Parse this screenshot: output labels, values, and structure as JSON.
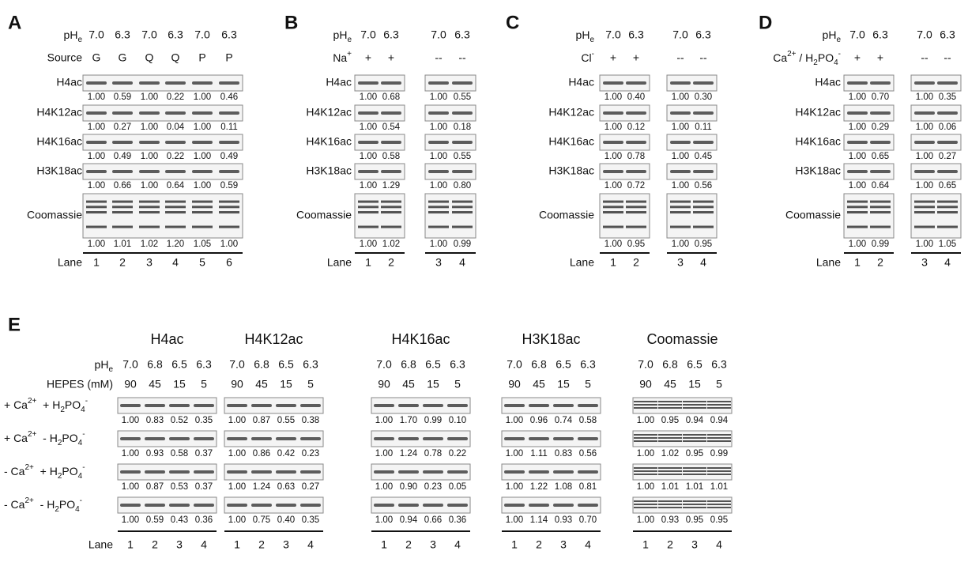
{
  "panels": [
    {
      "label": "A",
      "header_rows": [
        {
          "label": [
            {
              "t": "pH"
            },
            {
              "sub": "e"
            }
          ],
          "values": [
            "7.0",
            "6.3",
            "7.0",
            "6.3",
            "7.0",
            "6.3"
          ]
        },
        {
          "label": "Source",
          "values": [
            "G",
            "G",
            "Q",
            "Q",
            "P",
            "P"
          ]
        }
      ],
      "blots": [
        {
          "label": "H4ac",
          "quant": [
            "1.00",
            "0.59",
            "1.00",
            "0.22",
            "1.00",
            "0.46"
          ]
        },
        {
          "label": "H4K12ac",
          "quant": [
            "1.00",
            "0.27",
            "1.00",
            "0.04",
            "1.00",
            "0.11"
          ]
        },
        {
          "label": "H4K16ac",
          "quant": [
            "1.00",
            "0.49",
            "1.00",
            "0.22",
            "1.00",
            "0.49"
          ]
        },
        {
          "label": "H3K18ac",
          "quant": [
            "1.00",
            "0.66",
            "1.00",
            "0.64",
            "1.00",
            "0.59"
          ]
        },
        {
          "label": "Coomassie",
          "quant": [
            "1.00",
            "1.01",
            "1.02",
            "1.20",
            "1.05",
            "1.00"
          ]
        }
      ],
      "lane_label": "Lane",
      "lanes": [
        "1",
        "2",
        "3",
        "4",
        "5",
        "6"
      ]
    },
    {
      "label": "B",
      "header_rows": [
        {
          "label": [
            {
              "t": "pH"
            },
            {
              "sub": "e"
            }
          ],
          "values": [
            "7.0",
            "6.3",
            "7.0",
            "6.3"
          ]
        },
        {
          "label": [
            {
              "t": "Na"
            },
            {
              "sup": "+"
            }
          ],
          "values": [
            "+",
            "+",
            "--",
            "--"
          ]
        }
      ],
      "blots": [
        {
          "label": "H4ac",
          "quant": [
            "1.00",
            "0.68",
            "1.00",
            "0.55"
          ]
        },
        {
          "label": "H4K12ac",
          "quant": [
            "1.00",
            "0.54",
            "1.00",
            "0.18"
          ]
        },
        {
          "label": "H4K16ac",
          "quant": [
            "1.00",
            "0.58",
            "1.00",
            "0.55"
          ]
        },
        {
          "label": "H3K18ac",
          "quant": [
            "1.00",
            "1.29",
            "1.00",
            "0.80"
          ]
        },
        {
          "label": "Coomassie",
          "quant": [
            "1.00",
            "1.02",
            "1.00",
            "0.99"
          ]
        }
      ],
      "lane_label": "Lane",
      "lanes": [
        "1",
        "2",
        "3",
        "4"
      ]
    },
    {
      "label": "C",
      "header_rows": [
        {
          "label": [
            {
              "t": "pH"
            },
            {
              "sub": "e"
            }
          ],
          "values": [
            "7.0",
            "6.3",
            "7.0",
            "6.3"
          ]
        },
        {
          "label": [
            {
              "t": "Cl"
            },
            {
              "sup": "-"
            }
          ],
          "values": [
            "+",
            "+",
            "--",
            "--"
          ]
        }
      ],
      "blots": [
        {
          "label": "H4ac",
          "quant": [
            "1.00",
            "0.40",
            "1.00",
            "0.30"
          ]
        },
        {
          "label": "H4K12ac",
          "quant": [
            "1.00",
            "0.12",
            "1.00",
            "0.11"
          ]
        },
        {
          "label": "H4K16ac",
          "quant": [
            "1.00",
            "0.78",
            "1.00",
            "0.45"
          ]
        },
        {
          "label": "H3K18ac",
          "quant": [
            "1.00",
            "0.72",
            "1.00",
            "0.56"
          ]
        },
        {
          "label": "Coomassie",
          "quant": [
            "1.00",
            "0.95",
            "1.00",
            "0.95"
          ]
        }
      ],
      "lane_label": "Lane",
      "lanes": [
        "1",
        "2",
        "3",
        "4"
      ]
    },
    {
      "label": "D",
      "header_rows": [
        {
          "label": [
            {
              "t": "pH"
            },
            {
              "sub": "e"
            }
          ],
          "values": [
            "7.0",
            "6.3",
            "7.0",
            "6.3"
          ]
        },
        {
          "label": [
            {
              "t": "Ca"
            },
            {
              "sup": "2+"
            },
            {
              "t": " / H"
            },
            {
              "sub": "2"
            },
            {
              "t": "PO"
            },
            {
              "sub": "4"
            },
            {
              "sup": "-"
            }
          ],
          "values": [
            "+",
            "+",
            "--",
            "--"
          ]
        }
      ],
      "blots": [
        {
          "label": "H4ac",
          "quant": [
            "1.00",
            "0.70",
            "1.00",
            "0.35"
          ]
        },
        {
          "label": "H4K12ac",
          "quant": [
            "1.00",
            "0.29",
            "1.00",
            "0.06"
          ]
        },
        {
          "label": "H4K16ac",
          "quant": [
            "1.00",
            "0.65",
            "1.00",
            "0.27"
          ]
        },
        {
          "label": "H3K18ac",
          "quant": [
            "1.00",
            "0.64",
            "1.00",
            "0.65"
          ]
        },
        {
          "label": "Coomassie",
          "quant": [
            "1.00",
            "0.99",
            "1.00",
            "1.05"
          ]
        }
      ],
      "lane_label": "Lane",
      "lanes": [
        "1",
        "2",
        "3",
        "4"
      ]
    }
  ],
  "panel_e": {
    "label": "E",
    "header_labels": [
      [
        {
          "t": "pH"
        },
        {
          "sub": "e"
        }
      ],
      "HEPES (mM)"
    ],
    "row_labels": [
      [
        {
          "t": "+ Ca"
        },
        {
          "sup": "2+"
        },
        {
          "t": "  + H"
        },
        {
          "sub": "2"
        },
        {
          "t": "PO"
        },
        {
          "sub": "4"
        },
        {
          "sup": "-"
        }
      ],
      [
        {
          "t": "+ Ca"
        },
        {
          "sup": "2+"
        },
        {
          "t": "  - H"
        },
        {
          "sub": "2"
        },
        {
          "t": "PO"
        },
        {
          "sub": "4"
        },
        {
          "sup": "-"
        }
      ],
      [
        {
          "t": "- Ca"
        },
        {
          "sup": "2+"
        },
        {
          "t": "  + H"
        },
        {
          "sub": "2"
        },
        {
          "t": "PO"
        },
        {
          "sub": "4"
        },
        {
          "sup": "-"
        }
      ],
      [
        {
          "t": "- Ca"
        },
        {
          "sup": "2+"
        },
        {
          "t": "  - H"
        },
        {
          "sub": "2"
        },
        {
          "t": "PO"
        },
        {
          "sub": "4"
        },
        {
          "sup": "-"
        }
      ]
    ],
    "lane_label": "Lane",
    "groups": [
      {
        "title": "H4ac",
        "header_rows": [
          [
            "7.0",
            "6.8",
            "6.5",
            "6.3"
          ],
          [
            "90",
            "45",
            "15",
            "5"
          ]
        ],
        "rows": [
          [
            "1.00",
            "0.83",
            "0.52",
            "0.35"
          ],
          [
            "1.00",
            "0.93",
            "0.58",
            "0.37"
          ],
          [
            "1.00",
            "0.87",
            "0.53",
            "0.37"
          ],
          [
            "1.00",
            "0.59",
            "0.43",
            "0.36"
          ]
        ],
        "lanes": [
          "1",
          "2",
          "3",
          "4"
        ]
      },
      {
        "title": "H4K12ac",
        "header_rows": [
          [
            "7.0",
            "6.8",
            "6.5",
            "6.3"
          ],
          [
            "90",
            "45",
            "15",
            "5"
          ]
        ],
        "rows": [
          [
            "1.00",
            "0.87",
            "0.55",
            "0.38"
          ],
          [
            "1.00",
            "0.86",
            "0.42",
            "0.23"
          ],
          [
            "1.00",
            "1.24",
            "0.63",
            "0.27"
          ],
          [
            "1.00",
            "0.75",
            "0.40",
            "0.35"
          ]
        ],
        "lanes": [
          "1",
          "2",
          "3",
          "4"
        ]
      },
      {
        "title": "H4K16ac",
        "header_rows": [
          [
            "7.0",
            "6.8",
            "6.5",
            "6.3"
          ],
          [
            "90",
            "45",
            "15",
            "5"
          ]
        ],
        "rows": [
          [
            "1.00",
            "1.70",
            "0.99",
            "0.10"
          ],
          [
            "1.00",
            "1.24",
            "0.78",
            "0.22"
          ],
          [
            "1.00",
            "0.90",
            "0.23",
            "0.05"
          ],
          [
            "1.00",
            "0.94",
            "0.66",
            "0.36"
          ]
        ],
        "lanes": [
          "1",
          "2",
          "3",
          "4"
        ]
      },
      {
        "title": "H3K18ac",
        "header_rows": [
          [
            "7.0",
            "6.8",
            "6.5",
            "6.3"
          ],
          [
            "90",
            "45",
            "15",
            "5"
          ]
        ],
        "rows": [
          [
            "1.00",
            "0.96",
            "0.74",
            "0.58"
          ],
          [
            "1.00",
            "1.11",
            "0.83",
            "0.56"
          ],
          [
            "1.00",
            "1.22",
            "1.08",
            "0.81"
          ],
          [
            "1.00",
            "1.14",
            "0.93",
            "0.70"
          ]
        ],
        "lanes": [
          "1",
          "2",
          "3",
          "4"
        ]
      },
      {
        "title": "Coomassie",
        "header_rows": [
          [
            "7.0",
            "6.8",
            "6.5",
            "6.3"
          ],
          [
            "90",
            "45",
            "15",
            "5"
          ]
        ],
        "rows": [
          [
            "1.00",
            "0.95",
            "0.94",
            "0.94"
          ],
          [
            "1.00",
            "1.02",
            "0.95",
            "0.99"
          ],
          [
            "1.00",
            "1.01",
            "1.01",
            "1.01"
          ],
          [
            "1.00",
            "0.93",
            "0.95",
            "0.95"
          ]
        ],
        "lanes": [
          "1",
          "2",
          "3",
          "4"
        ]
      }
    ]
  }
}
